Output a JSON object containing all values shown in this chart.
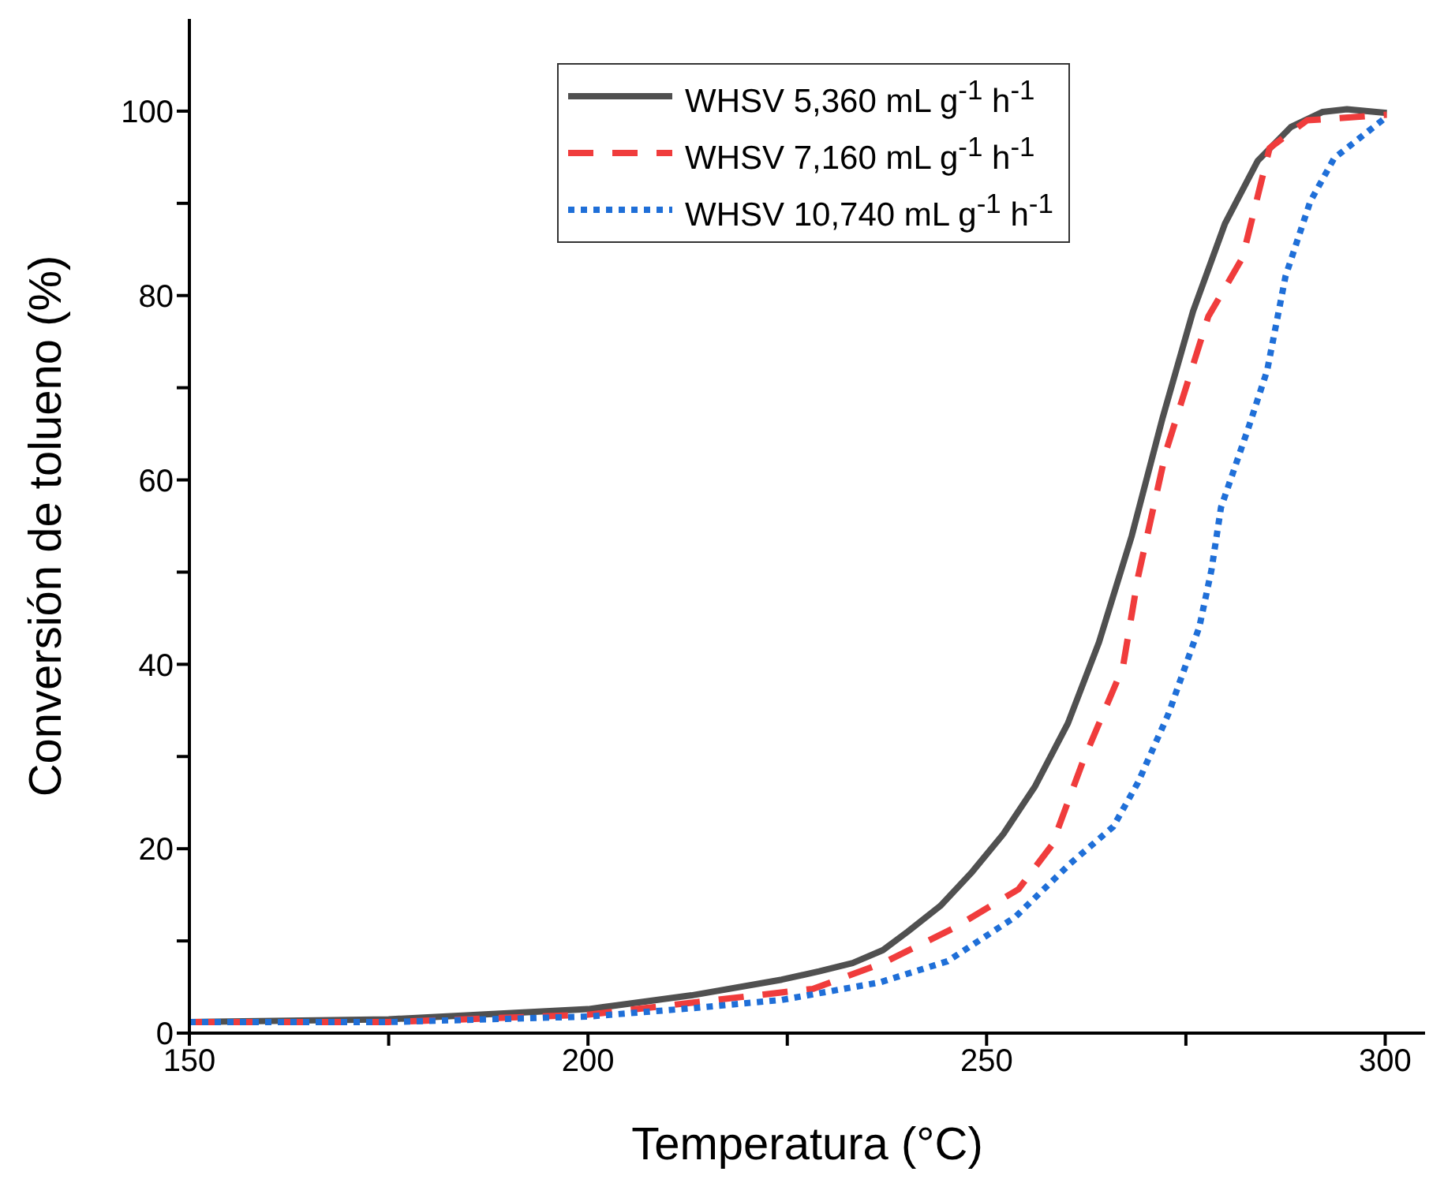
{
  "chart_data": {
    "type": "line",
    "xlabel": "Temperatura (°C)",
    "ylabel": "Conversión de tolueno (%)",
    "xlim": [
      150,
      305
    ],
    "ylim": [
      0,
      110
    ],
    "xticks": [
      150,
      {
        "value": 175,
        "label": null
      },
      200,
      {
        "value": 225,
        "label": null
      },
      250,
      {
        "value": 275,
        "label": null
      },
      300
    ],
    "yticks": [
      0,
      {
        "value": 10,
        "label": null
      },
      20,
      {
        "value": 30,
        "label": null
      },
      40,
      {
        "value": 50,
        "label": null
      },
      60,
      {
        "value": 70,
        "label": null
      },
      80,
      {
        "value": 90,
        "label": null
      },
      100
    ],
    "grid": false,
    "legend": "top",
    "marker": "none",
    "series": [
      {
        "name": "WHSV 5,360 mL g$^{-1}$ h$^{-1}$",
        "color": "#505050",
        "line_style": "solid",
        "x": [
          150,
          175,
          200,
          213,
          224.3,
          229,
          233.2,
          237,
          240.1,
          244.2,
          248.2,
          252.1,
          256.1,
          260.2,
          264.1,
          268.2,
          272.1,
          275.9,
          279.9,
          284,
          288.2,
          292.1,
          295.2,
          300.2
        ],
        "values": [
          1.2,
          1.5,
          2.6,
          4.1,
          5.8,
          6.7,
          7.6,
          9,
          11,
          13.8,
          17.5,
          21.6,
          26.8,
          33.6,
          42.4,
          53.9,
          66.8,
          78.3,
          87.8,
          94.6,
          98.3,
          99.9,
          100.2,
          99.8
        ]
      },
      {
        "name": "WHSV 7,160 mL g$^{-1}$ h$^{-1}$",
        "color": "#f03c3c",
        "line_style": "dashed",
        "x": [
          150,
          175,
          200,
          213,
          228.2,
          237,
          245.9,
          254,
          258.2,
          262.1,
          267.1,
          269,
          272.5,
          277.8,
          282.1,
          285.5,
          290.2,
          300.2
        ],
        "values": [
          1.2,
          1.2,
          2,
          3.3,
          4.8,
          7.6,
          11.4,
          15.6,
          20.4,
          29.5,
          39.7,
          49.5,
          63.1,
          77.7,
          84.1,
          96,
          99,
          99.6
        ]
      },
      {
        "name": "WHSV 10,740 mL g$^{-1}$ h$^{-1}$",
        "color": "#1f6fd8",
        "line_style": "dotted",
        "x": [
          150,
          175,
          200,
          213,
          224.3,
          236.6,
          245.1,
          253.6,
          260.5,
          265.9,
          269,
          272.8,
          276.7,
          278.2,
          279.4,
          282.9,
          285.2,
          287.5,
          290.6,
          293.6,
          300.2
        ],
        "values": [
          1.2,
          1.2,
          1.8,
          2.7,
          3.6,
          5.5,
          7.8,
          12.6,
          18.4,
          22.4,
          27.2,
          34.6,
          44.1,
          50.2,
          57,
          65.8,
          71.9,
          82.1,
          90.2,
          94.9,
          99.4
        ]
      }
    ]
  }
}
